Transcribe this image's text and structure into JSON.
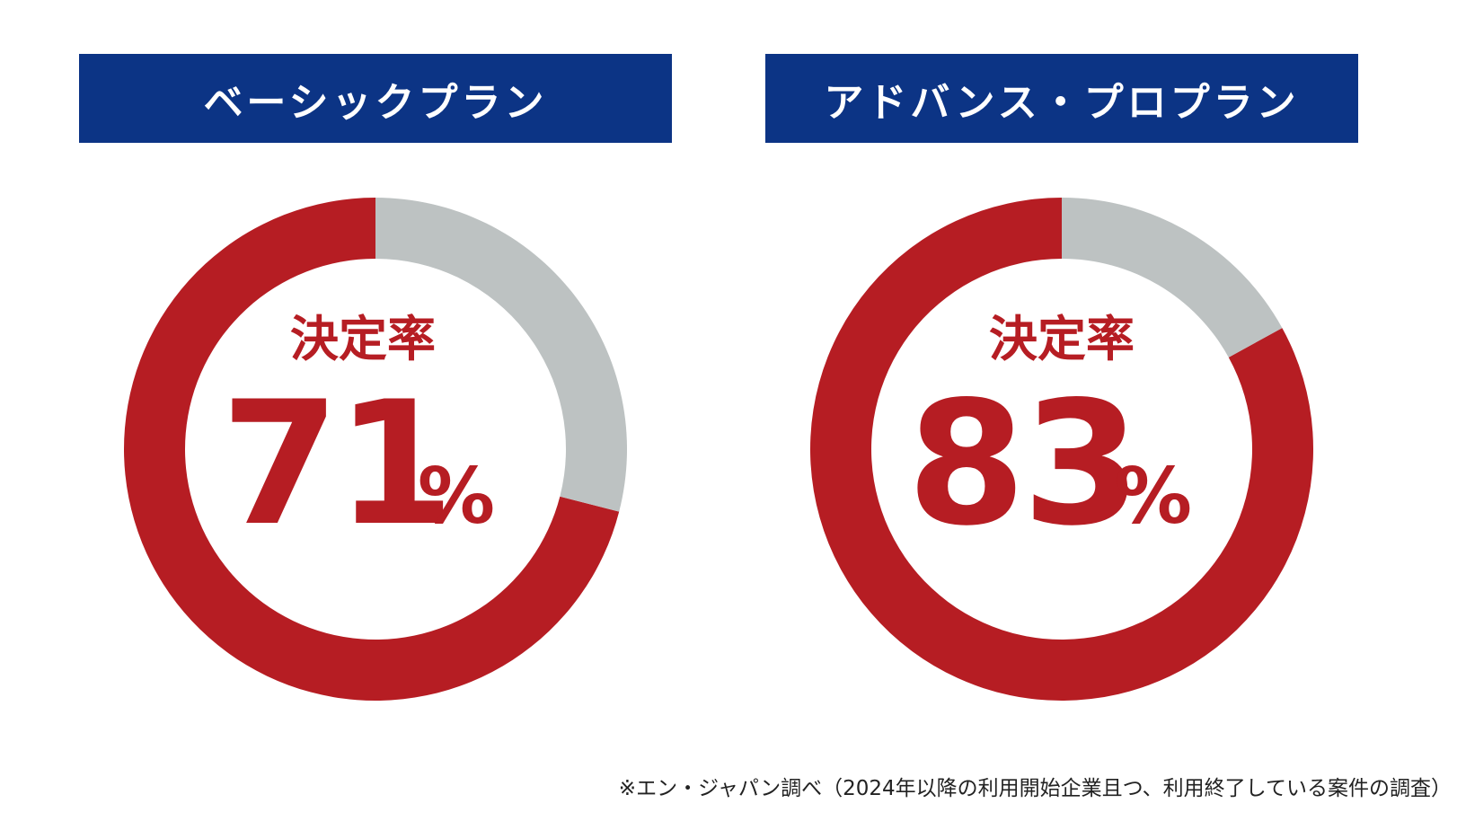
{
  "colors": {
    "header_bg": "#0c3485",
    "header_text": "#ffffff",
    "accent_red": "#b61d23",
    "remainder_gray": "#bdc2c2"
  },
  "chart_data": [
    {
      "type": "pie",
      "title": "ベーシックプラン",
      "center_label": "決定率",
      "center_value": "71",
      "center_unit": "%",
      "slices": [
        {
          "name": "決定",
          "value": 71,
          "color": "#b61d23"
        },
        {
          "name": "",
          "value": 29,
          "color": "#bdc2c2"
        }
      ]
    },
    {
      "type": "pie",
      "title": "アドバンス・プロプラン",
      "center_label": "決定率",
      "center_value": "83",
      "center_unit": "%",
      "slices": [
        {
          "name": "決定",
          "value": 83,
          "color": "#b61d23"
        },
        {
          "name": "",
          "value": 17,
          "color": "#bdc2c2"
        }
      ]
    }
  ],
  "footnote": "※エン・ジャパン調べ（2024年以降の利用開始企業且つ、利用終了している案件の調査）"
}
